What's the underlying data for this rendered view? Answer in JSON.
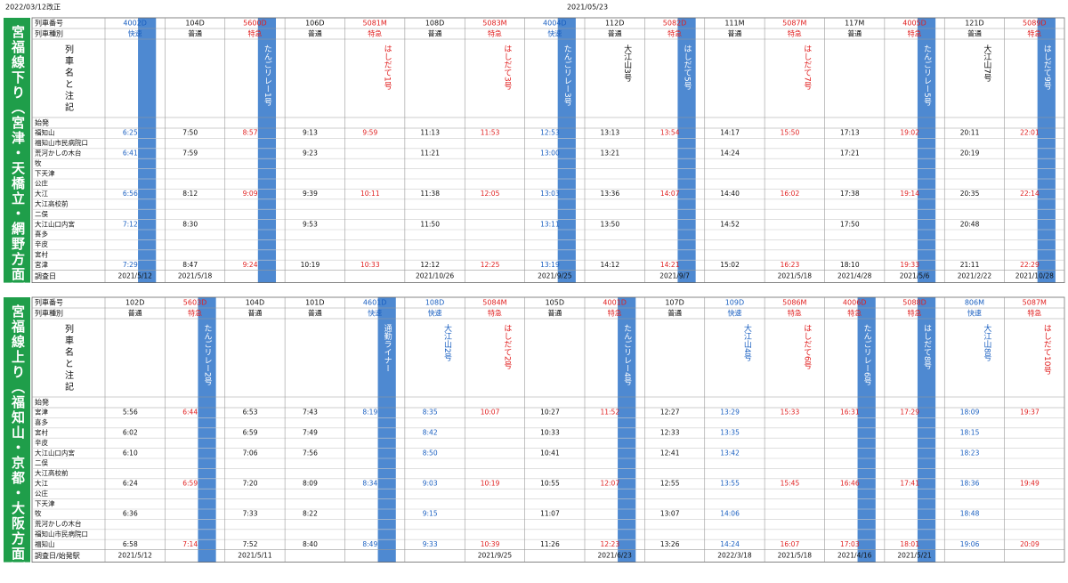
{
  "header": {
    "revision": "2022/03/12改正",
    "date": "2021/05/23"
  },
  "colors": {
    "section": "#1f9e4a",
    "highlight": "#2f74c9",
    "limited": "#e02020",
    "rapid": "#1a5fc0",
    "local": "#111111"
  },
  "sections": [
    {
      "title": "宮福線下り（宮津・天橋立・網野方面）",
      "labels": {
        "number": "列車番号",
        "type": "列車種別",
        "name": "列車名と注記",
        "origin": "始発",
        "end": "調査日"
      },
      "stations": [
        "福知山",
        "福知山市民病院口",
        "荒河かしの木台",
        "牧",
        "下天津",
        "公庄",
        "大江",
        "大江高校前",
        "二俣",
        "大江山口内宮",
        "喜多",
        "辛皮",
        "宮村",
        "宮津"
      ],
      "trains": [
        {
          "number": "4002D",
          "type": "快速",
          "kind": "rapid",
          "name": null,
          "highlight": true,
          "times": [
            "6:25",
            null,
            "6:41",
            null,
            null,
            null,
            "6:56",
            null,
            null,
            "7:12",
            null,
            null,
            null,
            "7:29"
          ],
          "footer": "2021/5/12"
        },
        {
          "number": "104D",
          "type": "普通",
          "kind": "local",
          "name": null,
          "highlight": false,
          "times": [
            "7:50",
            null,
            "7:59",
            null,
            null,
            null,
            "8:12",
            null,
            null,
            "8:30",
            null,
            null,
            null,
            "8:47"
          ],
          "footer": "2021/5/18"
        },
        {
          "number": "5600D",
          "type": "特急",
          "kind": "limited",
          "name": "たんごリレー1号",
          "highlight": true,
          "times": [
            "8:57",
            null,
            null,
            null,
            null,
            null,
            "9:09",
            null,
            null,
            null,
            null,
            null,
            null,
            "9:24"
          ],
          "footer": null
        },
        {
          "number": "106D",
          "type": "普通",
          "kind": "local",
          "name": null,
          "highlight": false,
          "times": [
            "9:13",
            null,
            "9:23",
            null,
            null,
            null,
            "9:39",
            null,
            null,
            "9:53",
            null,
            null,
            null,
            "10:19"
          ],
          "footer": null
        },
        {
          "number": "5081M",
          "type": "特急",
          "kind": "limited",
          "name": "はしだて1号",
          "highlight": false,
          "times": [
            "9:59",
            null,
            null,
            null,
            null,
            null,
            "10:11",
            null,
            null,
            null,
            null,
            null,
            null,
            "10:33"
          ],
          "footer": null
        },
        {
          "number": "108D",
          "type": "普通",
          "kind": "local",
          "name": null,
          "highlight": false,
          "times": [
            "11:13",
            null,
            "11:21",
            null,
            null,
            null,
            "11:38",
            null,
            null,
            "11:50",
            null,
            null,
            null,
            "12:12"
          ],
          "footer": "2021/10/26"
        },
        {
          "number": "5083M",
          "type": "特急",
          "kind": "limited",
          "name": "はしだて3号",
          "highlight": false,
          "times": [
            "11:53",
            null,
            null,
            null,
            null,
            null,
            "12:05",
            null,
            null,
            null,
            null,
            null,
            null,
            "12:25"
          ],
          "footer": null
        },
        {
          "number": "4004D",
          "type": "快速",
          "kind": "rapid",
          "name": "たんごリレー3号",
          "highlight": true,
          "times": [
            "12:53",
            null,
            "13:00",
            null,
            null,
            null,
            "13:03",
            null,
            null,
            "13:11",
            null,
            null,
            null,
            "13:19"
          ],
          "footer": "2021/9/25"
        },
        {
          "number": "112D",
          "type": "普通",
          "kind": "local",
          "name": "大江山3号",
          "highlight": false,
          "times": [
            "13:13",
            null,
            "13:21",
            null,
            null,
            null,
            "13:36",
            null,
            null,
            "13:50",
            null,
            null,
            null,
            "14:12"
          ],
          "footer": null
        },
        {
          "number": "5082D",
          "type": "特急",
          "kind": "limited",
          "name": "はしだて5号",
          "highlight": true,
          "times": [
            "13:54",
            null,
            null,
            null,
            null,
            null,
            "14:07",
            null,
            null,
            null,
            null,
            null,
            null,
            "14:21"
          ],
          "footer": "2021/9/7"
        },
        {
          "number": "111M",
          "type": "普通",
          "kind": "local",
          "name": null,
          "highlight": false,
          "times": [
            "14:17",
            null,
            "14:24",
            null,
            null,
            null,
            "14:40",
            null,
            null,
            "14:52",
            null,
            null,
            null,
            "15:02"
          ],
          "footer": null
        },
        {
          "number": "5087M",
          "type": "特急",
          "kind": "limited",
          "name": "はしだて7号",
          "highlight": false,
          "times": [
            "15:50",
            null,
            null,
            null,
            null,
            null,
            "16:02",
            null,
            null,
            null,
            null,
            null,
            null,
            "16:23"
          ],
          "footer": "2021/5/18"
        },
        {
          "number": "117M",
          "type": "普通",
          "kind": "local",
          "name": null,
          "highlight": false,
          "times": [
            "17:13",
            null,
            "17:21",
            null,
            null,
            null,
            "17:38",
            null,
            null,
            "17:50",
            null,
            null,
            null,
            "18:10"
          ],
          "footer": "2021/4/28"
        },
        {
          "number": "4005D",
          "type": "特急",
          "kind": "limited",
          "name": "たんごリレー5号",
          "highlight": true,
          "times": [
            "19:02",
            null,
            null,
            null,
            null,
            null,
            "19:14",
            null,
            null,
            null,
            null,
            null,
            null,
            "19:33"
          ],
          "footer": "2021/5/6"
        },
        {
          "number": "121D",
          "type": "普通",
          "kind": "local",
          "name": "大江山7号",
          "highlight": false,
          "times": [
            "20:11",
            null,
            "20:19",
            null,
            null,
            null,
            "20:35",
            null,
            null,
            "20:48",
            null,
            null,
            null,
            "21:11"
          ],
          "footer": "2021/2/22"
        },
        {
          "number": "5089D",
          "type": "特急",
          "kind": "limited",
          "name": "はしだて9号",
          "highlight": true,
          "times": [
            "22:01",
            null,
            null,
            null,
            null,
            null,
            "22:14",
            null,
            null,
            null,
            null,
            null,
            null,
            "22:29"
          ],
          "footer": "2021/10/28"
        }
      ]
    },
    {
      "title": "宮福線上り（福知山・京都・大阪方面）",
      "labels": {
        "number": "列車番号",
        "type": "列車種別",
        "name": "列車名と注記",
        "origin": "始発",
        "end": "調査日/始発駅"
      },
      "stations": [
        "宮津",
        "喜多",
        "宮村",
        "辛皮",
        "大江山口内宮",
        "二俣",
        "大江高校前",
        "大江",
        "公庄",
        "下天津",
        "牧",
        "荒河かしの木台",
        "福知山市民病院口",
        "福知山"
      ],
      "trains": [
        {
          "number": "102D",
          "type": "普通",
          "kind": "local",
          "name": null,
          "highlight": false,
          "times": [
            "5:56",
            null,
            "6:02",
            null,
            "6:10",
            null,
            null,
            "6:24",
            null,
            null,
            "6:36",
            null,
            null,
            "6:58"
          ],
          "footer": "2021/5/12"
        },
        {
          "number": "5603D",
          "type": "特急",
          "kind": "limited",
          "name": "たんごリレー2号",
          "highlight": true,
          "times": [
            "6:44",
            null,
            null,
            null,
            null,
            null,
            null,
            "6:59",
            null,
            null,
            null,
            null,
            null,
            "7:14"
          ],
          "footer": null
        },
        {
          "number": "104D",
          "type": "普通",
          "kind": "local",
          "name": null,
          "highlight": false,
          "times": [
            "6:53",
            null,
            "6:59",
            null,
            "7:06",
            null,
            null,
            "7:20",
            null,
            null,
            "7:33",
            null,
            null,
            "7:52"
          ],
          "footer": "2021/5/11"
        },
        {
          "number": "101D",
          "type": "普通",
          "kind": "local",
          "name": null,
          "highlight": false,
          "times": [
            "7:43",
            null,
            "7:49",
            null,
            "7:56",
            null,
            null,
            "8:09",
            null,
            null,
            "8:22",
            null,
            null,
            "8:40"
          ],
          "footer": null
        },
        {
          "number": "4601D",
          "type": "快速",
          "kind": "rapid",
          "name": "通勤ライナー",
          "highlight": true,
          "times": [
            "8:19",
            null,
            null,
            null,
            null,
            null,
            null,
            "8:34",
            null,
            null,
            null,
            null,
            null,
            "8:49"
          ],
          "footer": null
        },
        {
          "number": "108D",
          "type": "快速",
          "kind": "rapid",
          "name": "大江山2号",
          "highlight": false,
          "times": [
            "8:35",
            null,
            "8:42",
            null,
            "8:50",
            null,
            null,
            "9:03",
            null,
            null,
            "9:15",
            null,
            null,
            "9:33"
          ],
          "footer": null
        },
        {
          "number": "5084M",
          "type": "特急",
          "kind": "limited",
          "name": "はしだて2号",
          "highlight": false,
          "times": [
            "10:07",
            null,
            null,
            null,
            null,
            null,
            null,
            "10:19",
            null,
            null,
            null,
            null,
            null,
            "10:39"
          ],
          "footer": "2021/9/25"
        },
        {
          "number": "105D",
          "type": "普通",
          "kind": "local",
          "name": null,
          "highlight": false,
          "times": [
            "10:27",
            null,
            "10:33",
            null,
            "10:41",
            null,
            null,
            "10:55",
            null,
            null,
            "11:07",
            null,
            null,
            "11:26"
          ],
          "footer": null
        },
        {
          "number": "4001D",
          "type": "特急",
          "kind": "limited",
          "name": "たんごリレー4号",
          "highlight": true,
          "times": [
            "11:52",
            null,
            null,
            null,
            null,
            null,
            null,
            "12:07",
            null,
            null,
            null,
            null,
            null,
            "12:23"
          ],
          "footer": "2021/6/23"
        },
        {
          "number": "107D",
          "type": "普通",
          "kind": "local",
          "name": null,
          "highlight": false,
          "times": [
            "12:27",
            null,
            "12:33",
            null,
            "12:41",
            null,
            null,
            "12:55",
            null,
            null,
            "13:07",
            null,
            null,
            "13:26"
          ],
          "footer": null
        },
        {
          "number": "109D",
          "type": "快速",
          "kind": "rapid",
          "name": "大江山4号",
          "highlight": false,
          "times": [
            "13:29",
            null,
            "13:35",
            null,
            "13:42",
            null,
            null,
            "13:55",
            null,
            null,
            "14:06",
            null,
            null,
            "14:24"
          ],
          "footer": "2022/3/18"
        },
        {
          "number": "5086M",
          "type": "特急",
          "kind": "limited",
          "name": "はしだて6号",
          "highlight": false,
          "times": [
            "15:33",
            null,
            null,
            null,
            null,
            null,
            null,
            "15:45",
            null,
            null,
            null,
            null,
            null,
            "16:07"
          ],
          "footer": "2021/5/18"
        },
        {
          "number": "4006D",
          "type": "特急",
          "kind": "limited",
          "name": "たんごリレー6号",
          "highlight": true,
          "times": [
            "16:31",
            null,
            null,
            null,
            null,
            null,
            null,
            "16:46",
            null,
            null,
            null,
            null,
            null,
            "17:03"
          ],
          "footer": "2021/4/16"
        },
        {
          "number": "5088D",
          "type": "特急",
          "kind": "limited",
          "name": "はしだて8号",
          "highlight": true,
          "times": [
            "17:29",
            null,
            null,
            null,
            null,
            null,
            null,
            "17:41",
            null,
            null,
            null,
            null,
            null,
            "18:01"
          ],
          "footer": "2021/5/21"
        },
        {
          "number": "806M",
          "type": "快速",
          "kind": "rapid",
          "name": "大江山8号",
          "highlight": false,
          "times": [
            "18:09",
            null,
            "18:15",
            null,
            "18:23",
            null,
            null,
            "18:36",
            null,
            null,
            "18:48",
            null,
            null,
            "19:06"
          ],
          "footer": null
        },
        {
          "number": "5087M",
          "type": "特急",
          "kind": "limited",
          "name": "はしだて10号",
          "highlight": false,
          "times": [
            "19:37",
            null,
            null,
            null,
            null,
            null,
            null,
            "19:49",
            null,
            null,
            null,
            null,
            null,
            "20:09"
          ],
          "footer": null
        }
      ]
    }
  ]
}
